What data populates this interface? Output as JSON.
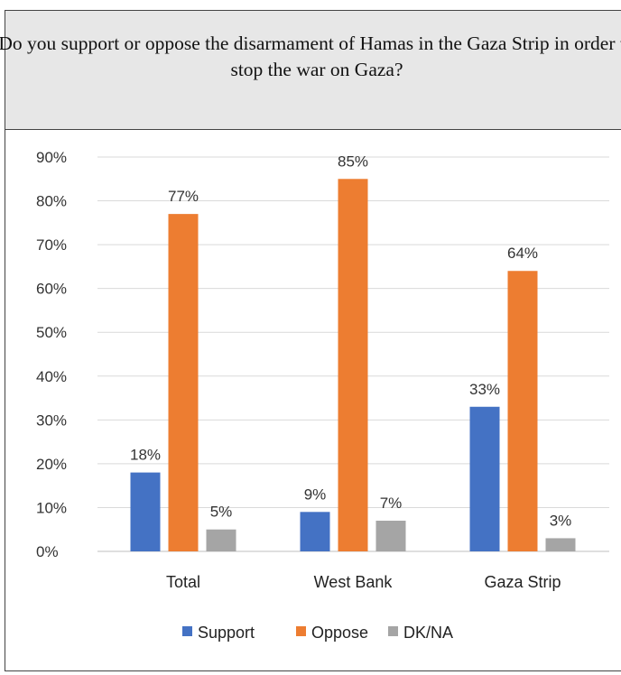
{
  "chart_data": {
    "type": "bar",
    "title": "Do you support or oppose the disarmament of Hamas in the Gaza Strip in order to stop the war on Gaza?",
    "categories": [
      "Total",
      "West Bank",
      "Gaza Strip"
    ],
    "series": [
      {
        "name": "Support",
        "color": "#4472c4",
        "values": [
          18,
          9,
          33
        ]
      },
      {
        "name": "Oppose",
        "color": "#ed7d31",
        "values": [
          77,
          85,
          64
        ]
      },
      {
        "name": "DK/NA",
        "color": "#a5a5a5",
        "values": [
          5,
          7,
          3
        ]
      }
    ],
    "yticks": [
      "0%",
      "10%",
      "20%",
      "30%",
      "40%",
      "50%",
      "60%",
      "70%",
      "80%",
      "90%"
    ],
    "ylim": [
      0,
      90
    ],
    "grid": true,
    "legend": "bottom"
  }
}
